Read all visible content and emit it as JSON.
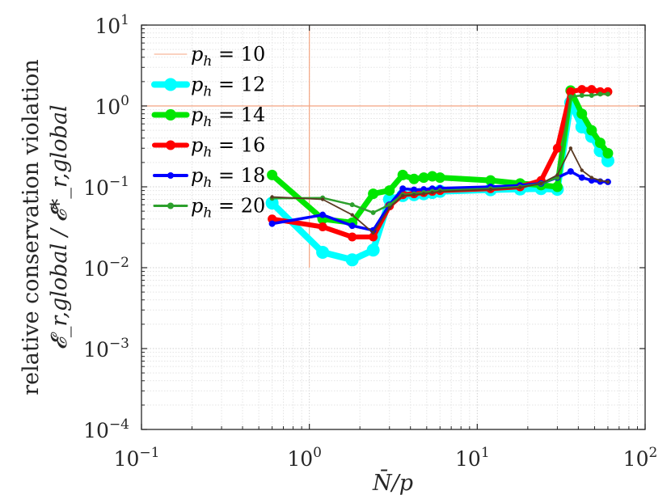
{
  "chart_data": {
    "type": "line",
    "title": "",
    "xlabel": "N̄/p",
    "ylabel_line1": "relative conservation violation",
    "ylabel_line2": "𝓔_r,global / 𝓔*_r,global",
    "xscale": "log",
    "yscale": "log",
    "xlim": [
      0.1,
      100
    ],
    "ylim": [
      0.0001,
      10
    ],
    "grid": true,
    "legend_position": "top-left",
    "x_ticks": [
      {
        "base": "10",
        "exp": "−1"
      },
      {
        "base": "10",
        "exp": "0"
      },
      {
        "base": "10",
        "exp": "1"
      },
      {
        "base": "10",
        "exp": "2"
      }
    ],
    "y_ticks": [
      {
        "base": "10",
        "exp": "−4"
      },
      {
        "base": "10",
        "exp": "−3"
      },
      {
        "base": "10",
        "exp": "−2"
      },
      {
        "base": "10",
        "exp": "−1"
      },
      {
        "base": "10",
        "exp": "0"
      },
      {
        "base": "10",
        "exp": "1"
      }
    ],
    "reference_lines": {
      "x": 1,
      "y": 1,
      "x_from_y": 0.01,
      "color": "#f4a582"
    },
    "series": [
      {
        "name": "p_h = 10",
        "color": "#f4a582",
        "marker": "none",
        "x": [],
        "y": []
      },
      {
        "name": "p_h = 12",
        "color": "#00ffff",
        "x": [
          0.6,
          1.2,
          1.8,
          2.4,
          3.0,
          3.6,
          4.2,
          4.8,
          5.4,
          6.0,
          12,
          18,
          24,
          30,
          36,
          42,
          48,
          54,
          60
        ],
        "y": [
          0.063,
          0.0155,
          0.0125,
          0.0165,
          0.07,
          0.078,
          0.08,
          0.082,
          0.085,
          0.088,
          0.092,
          0.094,
          0.095,
          0.093,
          1.1,
          0.55,
          0.42,
          0.28,
          0.21
        ]
      },
      {
        "name": "p_h = 14",
        "color": "#00e600",
        "x": [
          0.6,
          1.2,
          1.8,
          2.4,
          3.0,
          3.6,
          4.2,
          4.8,
          5.4,
          6.0,
          12,
          18,
          24,
          30,
          36,
          42,
          48,
          54,
          60
        ],
        "y": [
          0.14,
          0.04,
          0.036,
          0.082,
          0.09,
          0.14,
          0.125,
          0.13,
          0.135,
          0.13,
          0.12,
          0.11,
          0.105,
          0.1,
          1.55,
          0.8,
          0.5,
          0.35,
          0.26
        ]
      },
      {
        "name": "p_h = 16",
        "color": "#ff0000",
        "x": [
          0.6,
          1.2,
          1.8,
          2.4,
          3.0,
          3.6,
          4.2,
          4.8,
          5.4,
          6.0,
          12,
          18,
          24,
          30,
          36,
          42,
          48,
          54,
          60
        ],
        "y": [
          0.04,
          0.032,
          0.024,
          0.024,
          0.058,
          0.08,
          0.082,
          0.085,
          0.088,
          0.09,
          0.095,
          0.1,
          0.12,
          0.3,
          1.5,
          1.6,
          1.6,
          1.5,
          1.5
        ]
      },
      {
        "name": "p_h = 18",
        "color": "#0000ff",
        "x": [
          0.6,
          1.2,
          1.8,
          2.4,
          3.0,
          3.6,
          4.2,
          4.8,
          5.4,
          6.0,
          12,
          18,
          24,
          30,
          36,
          42,
          48,
          54,
          60
        ],
        "y": [
          0.035,
          0.045,
          0.033,
          0.029,
          0.06,
          0.095,
          0.092,
          0.093,
          0.095,
          0.096,
          0.1,
          0.104,
          0.11,
          0.13,
          0.155,
          0.13,
          0.12,
          0.116,
          0.115
        ]
      },
      {
        "name": "p_h = 20",
        "color": "#2ca02c",
        "x": [
          0.6,
          1.2,
          1.8,
          2.4,
          3.0,
          3.6,
          4.2,
          4.8,
          5.4,
          6.0,
          12,
          18,
          24,
          30,
          36,
          42,
          48,
          54,
          60
        ],
        "y": [
          0.072,
          0.073,
          0.06,
          0.048,
          0.06,
          0.08,
          0.082,
          0.085,
          0.088,
          0.09,
          0.095,
          0.1,
          0.11,
          0.13,
          1.3,
          1.35,
          1.35,
          1.4,
          1.4
        ]
      },
      {
        "name": "",
        "color": "#5a3a22",
        "x": [
          0.6,
          1.2,
          1.8,
          2.4,
          3.0,
          3.6,
          4.2,
          4.8,
          5.4,
          6.0,
          12,
          18,
          24,
          30,
          36,
          42,
          48,
          54,
          60
        ],
        "y": [
          0.075,
          0.07,
          0.045,
          0.027,
          0.055,
          0.078,
          0.08,
          0.082,
          0.085,
          0.088,
          0.093,
          0.098,
          0.11,
          0.14,
          0.3,
          0.16,
          0.13,
          0.12,
          0.115
        ]
      }
    ],
    "legend_entries": [
      {
        "var": "p",
        "sub": "h",
        "eq": "= 10",
        "color": "#f4a582",
        "line_width": 1,
        "marker": false
      },
      {
        "var": "p",
        "sub": "h",
        "eq": "= 12",
        "color": "#00ffff",
        "line_width": 8,
        "marker": true
      },
      {
        "var": "p",
        "sub": "h",
        "eq": "= 14",
        "color": "#00e600",
        "line_width": 7,
        "marker": true
      },
      {
        "var": "p",
        "sub": "h",
        "eq": "= 16",
        "color": "#ff0000",
        "line_width": 6,
        "marker": true
      },
      {
        "var": "p",
        "sub": "h",
        "eq": "= 18",
        "color": "#0000ff",
        "line_width": 4,
        "marker": true
      },
      {
        "var": "p",
        "sub": "h",
        "eq": "= 20",
        "color": "#2ca02c",
        "line_width": 3,
        "marker": true
      }
    ]
  }
}
